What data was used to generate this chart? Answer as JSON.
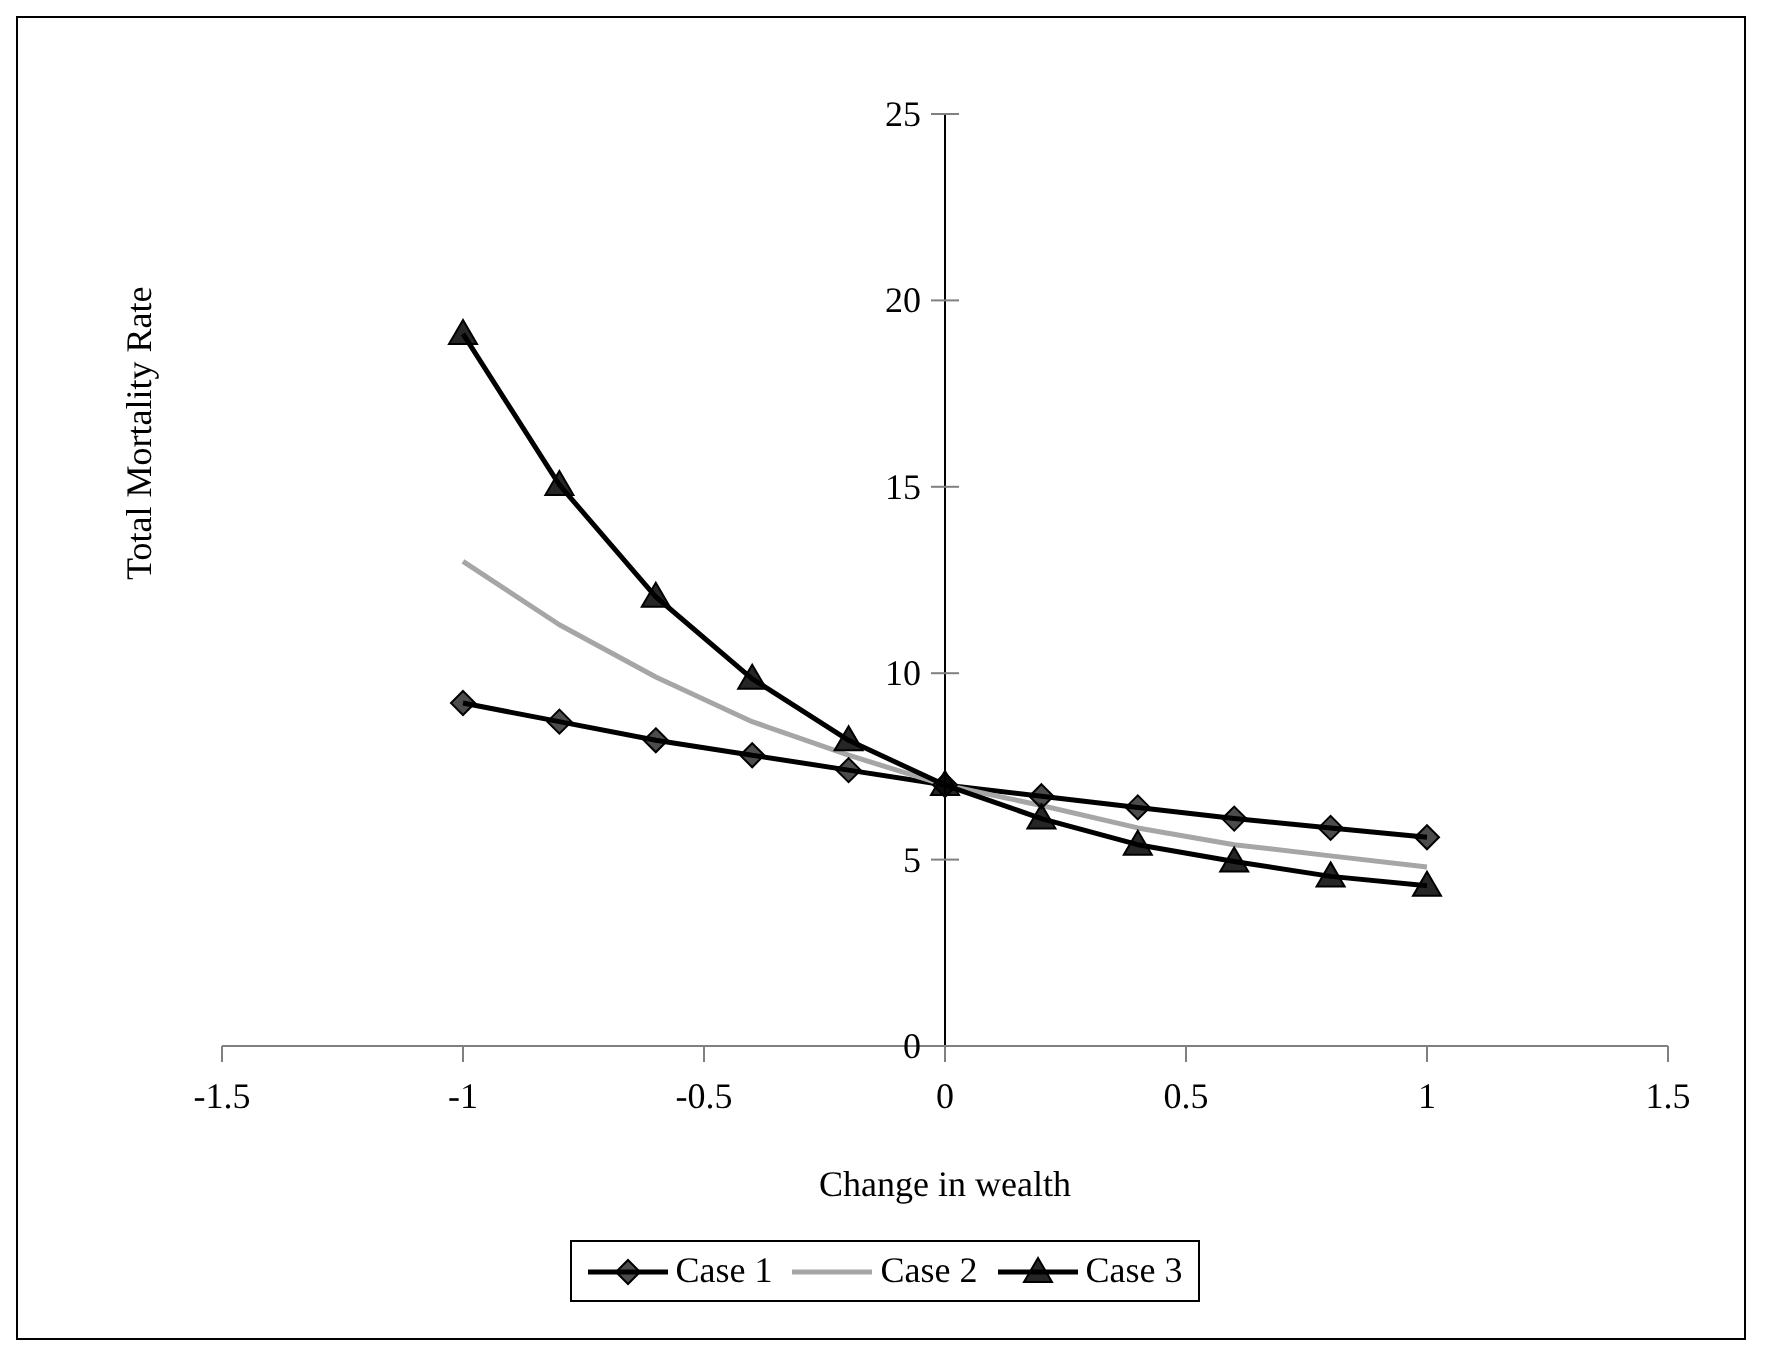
{
  "chart_data": {
    "type": "line",
    "xlabel": "Change in wealth",
    "ylabel": "Total Mortality Rate",
    "x": [
      -1,
      -0.8,
      -0.6,
      -0.4,
      -0.2,
      0,
      0.2,
      0.4,
      0.6,
      0.8,
      1
    ],
    "series": [
      {
        "name": "Case 1",
        "color": "#000000",
        "marker": "diamond",
        "values": [
          9.2,
          8.7,
          8.2,
          7.8,
          7.4,
          7.0,
          6.7,
          6.4,
          6.1,
          5.85,
          5.6
        ]
      },
      {
        "name": "Case 2",
        "color": "#a6a6a6",
        "marker": "none",
        "values": [
          13.0,
          11.3,
          9.9,
          8.7,
          7.8,
          7.0,
          6.45,
          5.85,
          5.4,
          5.1,
          4.8
        ]
      },
      {
        "name": "Case 3",
        "color": "#000000",
        "marker": "triangle",
        "values": [
          19.1,
          15.05,
          12.05,
          9.85,
          8.2,
          7.0,
          6.1,
          5.4,
          4.95,
          4.55,
          4.3
        ]
      }
    ],
    "xlim": [
      -1.5,
      1.5
    ],
    "xticks": [
      -1.5,
      -1,
      -0.5,
      0,
      0.5,
      1,
      1.5
    ],
    "ylim": [
      0,
      25
    ],
    "yticks": [
      0,
      5,
      10,
      15,
      20,
      25
    ],
    "grid": false,
    "legend": "bottom"
  }
}
